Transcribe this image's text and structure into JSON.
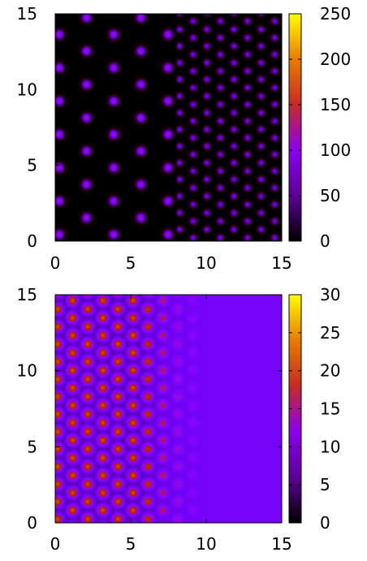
{
  "chart_data": [
    {
      "type": "heatmap",
      "pattern": "hexagonal lattice of bright spots; sparse, brighter spots for x < 8, denser, dimmer spots for x > 8",
      "xlim": [
        0,
        15
      ],
      "ylim": [
        0,
        15
      ],
      "x_ticks": [
        "0",
        "5",
        "10",
        "15"
      ],
      "y_ticks": [
        "0",
        "5",
        "10",
        "15"
      ],
      "colorbar": {
        "range": [
          0,
          250
        ],
        "ticks": [
          "0",
          "50",
          "100",
          "150",
          "200",
          "250"
        ],
        "colormap": "gnuplot-pm3d"
      },
      "lattice": {
        "left_region": {
          "x_range": [
            0,
            8
          ],
          "column_spacing": 1.8,
          "row_spacing": 2.2,
          "peak_value": 100
        },
        "right_region": {
          "x_range": [
            8,
            15
          ],
          "column_spacing": 0.9,
          "row_spacing": 1.1,
          "peak_value": 55
        }
      },
      "background_value": 0
    },
    {
      "type": "heatmap",
      "pattern": "hexagonal lattice of bright spots on the left fading into a uniform value toward the right",
      "xlim": [
        0,
        15
      ],
      "ylim": [
        0,
        15
      ],
      "x_ticks": [
        "0",
        "5",
        "10",
        "15"
      ],
      "y_ticks": [
        "0",
        "5",
        "10",
        "15"
      ],
      "colorbar": {
        "range": [
          0,
          30
        ],
        "ticks": [
          "0",
          "5",
          "10",
          "15",
          "20",
          "25",
          "30"
        ],
        "colormap": "gnuplot-pm3d"
      },
      "lattice": {
        "column_spacing": 1.0,
        "row_spacing": 1.15,
        "peak_value": 20,
        "trough_value": 2,
        "contrast_fades_from_x": 5.5,
        "contrast_fades_to_x": 10,
        "uniform_value": 6.5
      }
    }
  ],
  "colors": {
    "background": "#ffffff",
    "axis": "#000000"
  }
}
